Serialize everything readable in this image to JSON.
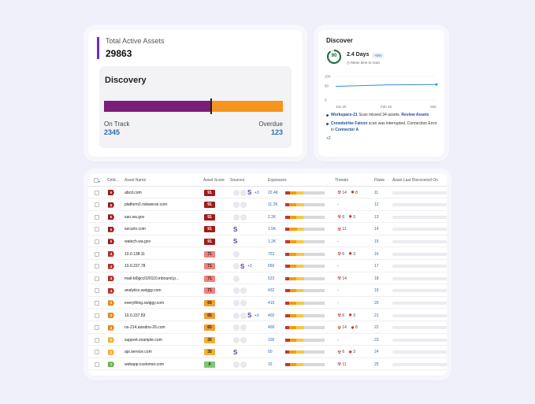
{
  "assets": {
    "label": "Total Active Assets",
    "value": "29863",
    "discovery_title": "Discovery",
    "on_track_label": "On Track",
    "on_track_value": "2345",
    "overdue_label": "Overdue",
    "overdue_value": "123",
    "on_track_fraction": 0.6
  },
  "discover": {
    "title": "Discover",
    "gauge_value": "90",
    "days": "2.4 Days",
    "badge": "+5%",
    "subtitle": "Mean time to scan",
    "chart_data": {
      "type": "line",
      "x": [
        "Jan 25",
        "Feb 25",
        "Mar"
      ],
      "y_ticks": [
        "100",
        "60",
        "0"
      ],
      "series": [
        {
          "values": [
            58,
            64,
            66
          ]
        }
      ],
      "ylim": [
        0,
        100
      ]
    },
    "news": [
      {
        "lead": "Workspace-21",
        "text": " Scan missed 34 assets. ",
        "link": "Review Assets",
        "tail": ""
      },
      {
        "lead": "Crowdstrike Falcon",
        "text": " scan was interrupted. Connection Error in ",
        "link": "Connector A",
        "tail": ""
      }
    ],
    "more": "+2"
  },
  "table": {
    "headers": [
      "Critic..",
      "Asset Name",
      "Asset Score",
      "Sources",
      "Exposures",
      "Threats",
      "Flaws",
      "Asset Last Discovered On"
    ],
    "rows": [
      {
        "crit": "5",
        "name": "abcd.com",
        "score": "91",
        "src": "cc",
        "more": "+3",
        "srcS": true,
        "expo": "22.4K",
        "bar": [
          35,
          30,
          35
        ],
        "thr1": "14",
        "thr2": "8",
        "flaws": "11"
      },
      {
        "crit": "5",
        "name": "platform2.riskwerse.com",
        "score": "91",
        "src": "cc",
        "more": "",
        "srcS": false,
        "expo": "11.2K",
        "bar": [
          30,
          30,
          40
        ],
        "thr1": "-",
        "thr2": "",
        "flaws": "12"
      },
      {
        "crit": "5",
        "name": "sao.wa.gov",
        "score": "91",
        "src": "cc",
        "more": "",
        "srcS": false,
        "expo": "2.2K",
        "bar": [
          35,
          30,
          35
        ],
        "thr1": "6",
        "thr2": "3",
        "flaws": "13"
      },
      {
        "crit": "5",
        "name": "securin.com",
        "score": "91",
        "src": "",
        "more": "",
        "srcS": true,
        "expo": "1.5K",
        "bar": [
          30,
          35,
          35
        ],
        "thr1": "11",
        "thr2": "",
        "flaws": "14"
      },
      {
        "crit": "5",
        "name": "watech.wa.gov",
        "score": "91",
        "src": "",
        "more": "",
        "srcS": true,
        "expo": "1.2K",
        "bar": [
          35,
          30,
          35
        ],
        "thr1": "-",
        "thr2": "",
        "flaws": "15"
      },
      {
        "crit": "4",
        "name": "10.0.138.11",
        "score": "71",
        "src": "c",
        "more": "",
        "srcS": false,
        "expo": "752",
        "bar": [
          30,
          30,
          40
        ],
        "thr1": "6",
        "thr2": "3",
        "flaws": "16"
      },
      {
        "crit": "4",
        "name": "10.0.237.78",
        "score": "71",
        "src": "c",
        "more": "+3",
        "srcS": true,
        "expo": "650",
        "bar": [
          35,
          30,
          35
        ],
        "thr1": "-",
        "thr2": "",
        "flaws": "17"
      },
      {
        "crit": "4",
        "name": "mail-bl0gcc020110.inbound.p...",
        "score": "71",
        "src": "c",
        "more": "",
        "srcS": false,
        "expo": "522",
        "bar": [
          30,
          30,
          40
        ],
        "thr1": "14",
        "thr2": "",
        "flaws": "18"
      },
      {
        "crit": "4",
        "name": "analytics.swiggy.com",
        "score": "71",
        "src": "cc",
        "more": "",
        "srcS": false,
        "expo": "432",
        "bar": [
          35,
          30,
          35
        ],
        "thr1": "-",
        "thr2": "",
        "flaws": "19"
      },
      {
        "crit": "3",
        "name": "everything.swiggy.com",
        "score": "65",
        "src": "cc",
        "more": "",
        "srcS": false,
        "expo": "415",
        "bar": [
          30,
          30,
          40
        ],
        "thr1": "-",
        "thr2": "",
        "flaws": "20"
      },
      {
        "crit": "3",
        "name": "10.0.237.83",
        "score": "65",
        "src": "cc",
        "more": "+3",
        "srcS": true,
        "expo": "402",
        "bar": [
          35,
          30,
          35
        ],
        "thr1": "6",
        "thr2": "3",
        "flaws": "21"
      },
      {
        "crit": "3",
        "name": "ns-214.awsdns-26.com",
        "score": "65",
        "src": "cc",
        "more": "",
        "srcS": false,
        "expo": "400",
        "bar": [
          30,
          30,
          40
        ],
        "thr1": "14",
        "thr2": "8",
        "flaws": "22"
      },
      {
        "crit": "2",
        "name": "support.example.com",
        "score": "35",
        "src": "cc",
        "more": "",
        "srcS": false,
        "expo": "100",
        "bar": [
          35,
          30,
          35
        ],
        "thr1": "-",
        "thr2": "",
        "flaws": "23"
      },
      {
        "crit": "2",
        "name": "api.service.com",
        "score": "35",
        "src": "",
        "more": "",
        "srcS": true,
        "expo": "50",
        "bar": [
          30,
          30,
          40
        ],
        "thr1": "6",
        "thr2": "3",
        "flaws": "24"
      },
      {
        "crit": "1",
        "name": "webapp.customer.com",
        "score": "0",
        "src": "cc",
        "more": "",
        "srcS": false,
        "expo": "32",
        "bar": [
          35,
          30,
          35
        ],
        "thr1": "11",
        "thr2": "",
        "flaws": "25"
      }
    ]
  },
  "colors": {
    "crit5": "#a01c1c",
    "crit4": "#b5302a",
    "crit3": "#e88a1a",
    "crit2": "#f2b233",
    "crit1": "#6ab04c",
    "score91": "#a01c1c",
    "score71": "#f08080",
    "score65": "#f39c32",
    "score35": "#f2b233",
    "score0": "#7bc96f"
  }
}
